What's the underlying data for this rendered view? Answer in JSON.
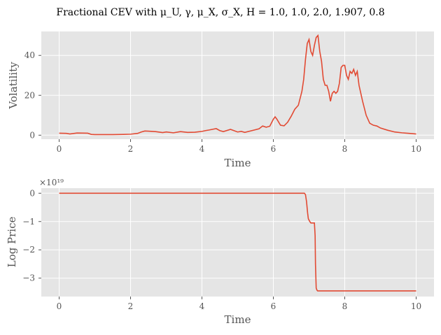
{
  "figure": {
    "title": "Fractional CEV with μ_U, γ, μ_X, σ_X, H = 1.0, 1.0, 2.0, 1.907, 0.8"
  },
  "chart_data": [
    {
      "type": "line",
      "title": "",
      "xlabel": "Time",
      "ylabel": "Volatility",
      "xlim": [
        -0.5,
        10.5
      ],
      "ylim": [
        -2,
        52
      ],
      "xticks": [
        0,
        2,
        4,
        6,
        8,
        10
      ],
      "yticks": [
        0,
        20,
        40
      ],
      "xtick_labels": [
        "0",
        "2",
        "4",
        "6",
        "8",
        "10"
      ],
      "ytick_labels": [
        "0",
        "20",
        "40"
      ],
      "offset_label": "",
      "grid": true,
      "color": "#E24A33",
      "series": [
        {
          "x": [
            0.0,
            0.2,
            0.3,
            0.5,
            0.8,
            0.9,
            1.0,
            1.2,
            1.5,
            1.8,
            2.0,
            2.2,
            2.3,
            2.4,
            2.5,
            2.7,
            2.9,
            3.0,
            3.2,
            3.4,
            3.6,
            3.8,
            4.0,
            4.1,
            4.2,
            4.4,
            4.5,
            4.6,
            4.8,
            5.0,
            5.1,
            5.2,
            5.4,
            5.6,
            5.7,
            5.8,
            5.9,
            6.0,
            6.05,
            6.1,
            6.2,
            6.3,
            6.4,
            6.5,
            6.6,
            6.7,
            6.8,
            6.85,
            6.9,
            6.95,
            7.0,
            7.05,
            7.1,
            7.15,
            7.2,
            7.25,
            7.3,
            7.35,
            7.4,
            7.45,
            7.5,
            7.55,
            7.6,
            7.65,
            7.7,
            7.75,
            7.8,
            7.85,
            7.9,
            7.95,
            8.0,
            8.05,
            8.1,
            8.15,
            8.2,
            8.25,
            8.3,
            8.35,
            8.4,
            8.5,
            8.6,
            8.7,
            8.8,
            8.9,
            9.0,
            9.2,
            9.4,
            9.6,
            9.8,
            10.0
          ],
          "y": [
            1.0,
            0.9,
            0.6,
            1.1,
            1.0,
            0.4,
            0.3,
            0.3,
            0.3,
            0.4,
            0.5,
            0.9,
            1.6,
            2.1,
            2.0,
            1.8,
            1.3,
            1.6,
            1.2,
            1.8,
            1.4,
            1.5,
            1.9,
            2.3,
            2.6,
            3.3,
            2.3,
            1.8,
            2.9,
            1.6,
            1.9,
            1.4,
            2.3,
            3.2,
            4.6,
            4.0,
            4.5,
            8.0,
            9.2,
            8.0,
            5.0,
            4.7,
            6.5,
            9.5,
            13.0,
            15.0,
            22.0,
            28.0,
            38.0,
            46.0,
            48.0,
            42.0,
            40.0,
            45.0,
            49.0,
            50.0,
            42.0,
            37.0,
            28.0,
            25.0,
            25.0,
            22.0,
            17.0,
            21.0,
            22.0,
            21.0,
            22.0,
            26.0,
            34.0,
            35.0,
            35.0,
            30.0,
            28.0,
            32.0,
            31.0,
            33.0,
            30.0,
            32.0,
            25.0,
            17.0,
            10.0,
            6.0,
            5.0,
            4.6,
            3.6,
            2.5,
            1.6,
            1.2,
            0.9,
            0.6
          ]
        }
      ]
    },
    {
      "type": "line",
      "title": "",
      "xlabel": "Time",
      "ylabel": "Log Price",
      "xlim": [
        -0.5,
        10.5
      ],
      "ylim": [
        -3.65,
        0.18
      ],
      "xticks": [
        0,
        2,
        4,
        6,
        8,
        10
      ],
      "yticks": [
        0,
        -1,
        -2,
        -3
      ],
      "xtick_labels": [
        "0",
        "2",
        "4",
        "6",
        "8",
        "10"
      ],
      "ytick_labels": [
        "0",
        "−1",
        "−2",
        "−3"
      ],
      "offset_label": "×10¹⁹",
      "grid": true,
      "color": "#E24A33",
      "series": [
        {
          "x": [
            0.0,
            6.87,
            6.9,
            6.93,
            6.96,
            6.98,
            7.0,
            7.02,
            7.05,
            7.1,
            7.15,
            7.17,
            7.18,
            7.2,
            7.22,
            7.24,
            7.3,
            8.0,
            9.0,
            10.0
          ],
          "y": [
            0.0,
            0.0,
            -0.05,
            -0.3,
            -0.7,
            -0.9,
            -0.95,
            -1.0,
            -1.05,
            -1.05,
            -1.05,
            -1.5,
            -2.5,
            -3.35,
            -3.42,
            -3.45,
            -3.45,
            -3.45,
            -3.45,
            -3.45
          ]
        }
      ]
    }
  ]
}
